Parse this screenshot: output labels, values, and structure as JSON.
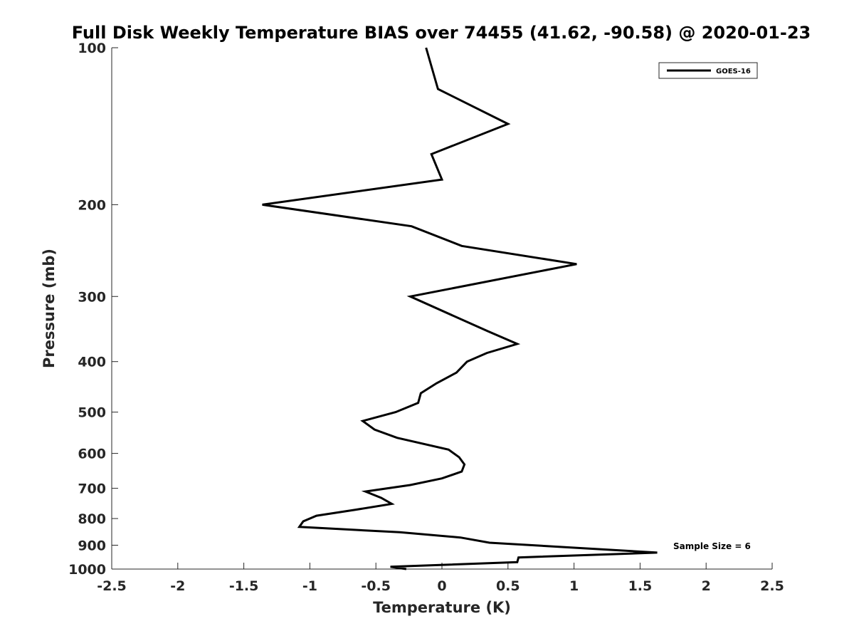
{
  "chart_data": {
    "type": "line",
    "title": "Full Disk Weekly Temperature BIAS over 74455 (41.62, -90.58) @ 2020-01-23",
    "xlabel": "Temperature (K)",
    "ylabel": "Pressure (mb)",
    "xlim": [
      -2.5,
      2.5
    ],
    "ylim": [
      100,
      1000
    ],
    "y_scale": "log",
    "y_reversed": true,
    "grid": false,
    "x_ticks": [
      "-2.5",
      "-2",
      "-1.5",
      "-1",
      "-0.5",
      "0",
      "0.5",
      "1",
      "1.5",
      "2",
      "2.5"
    ],
    "x_tick_values": [
      -2.5,
      -2,
      -1.5,
      -1,
      -0.5,
      0,
      0.5,
      1,
      1.5,
      2,
      2.5
    ],
    "y_ticks": [
      "100",
      "200",
      "300",
      "400",
      "500",
      "600",
      "700",
      "800",
      "900",
      "1000"
    ],
    "y_tick_values": [
      100,
      200,
      300,
      400,
      500,
      600,
      700,
      800,
      900,
      1000
    ],
    "legend_position": "top-right",
    "series": [
      {
        "name": "GOES-16",
        "color": "#000000",
        "points": [
          [
            -0.12,
            100
          ],
          [
            -0.03,
            120
          ],
          [
            0.5,
            140
          ],
          [
            -0.08,
            160
          ],
          [
            0.0,
            179
          ],
          [
            -1.36,
            200
          ],
          [
            -0.23,
            220
          ],
          [
            0.15,
            240
          ],
          [
            1.02,
            260
          ],
          [
            -0.24,
            300
          ],
          [
            0.35,
            350
          ],
          [
            0.57,
            370
          ],
          [
            0.34,
            385
          ],
          [
            0.19,
            400
          ],
          [
            0.11,
            420
          ],
          [
            -0.04,
            440
          ],
          [
            -0.16,
            460
          ],
          [
            -0.18,
            480
          ],
          [
            -0.35,
            500
          ],
          [
            -0.6,
            520
          ],
          [
            -0.51,
            540
          ],
          [
            -0.34,
            560
          ],
          [
            0.05,
            590
          ],
          [
            0.13,
            610
          ],
          [
            0.17,
            630
          ],
          [
            0.15,
            650
          ],
          [
            0.0,
            670
          ],
          [
            -0.24,
            690
          ],
          [
            -0.58,
            710
          ],
          [
            -0.46,
            730
          ],
          [
            -0.38,
            750
          ],
          [
            -0.66,
            770
          ],
          [
            -0.95,
            790
          ],
          [
            -1.05,
            810
          ],
          [
            -1.08,
            830
          ],
          [
            -0.32,
            850
          ],
          [
            0.14,
            870
          ],
          [
            0.36,
            890
          ],
          [
            1.0,
            910
          ],
          [
            1.63,
            930
          ],
          [
            0.58,
            950
          ],
          [
            0.57,
            970
          ],
          [
            -0.39,
            990
          ],
          [
            -0.27,
            1000
          ]
        ]
      }
    ],
    "annotations": [
      "Sample Size = 6"
    ]
  }
}
